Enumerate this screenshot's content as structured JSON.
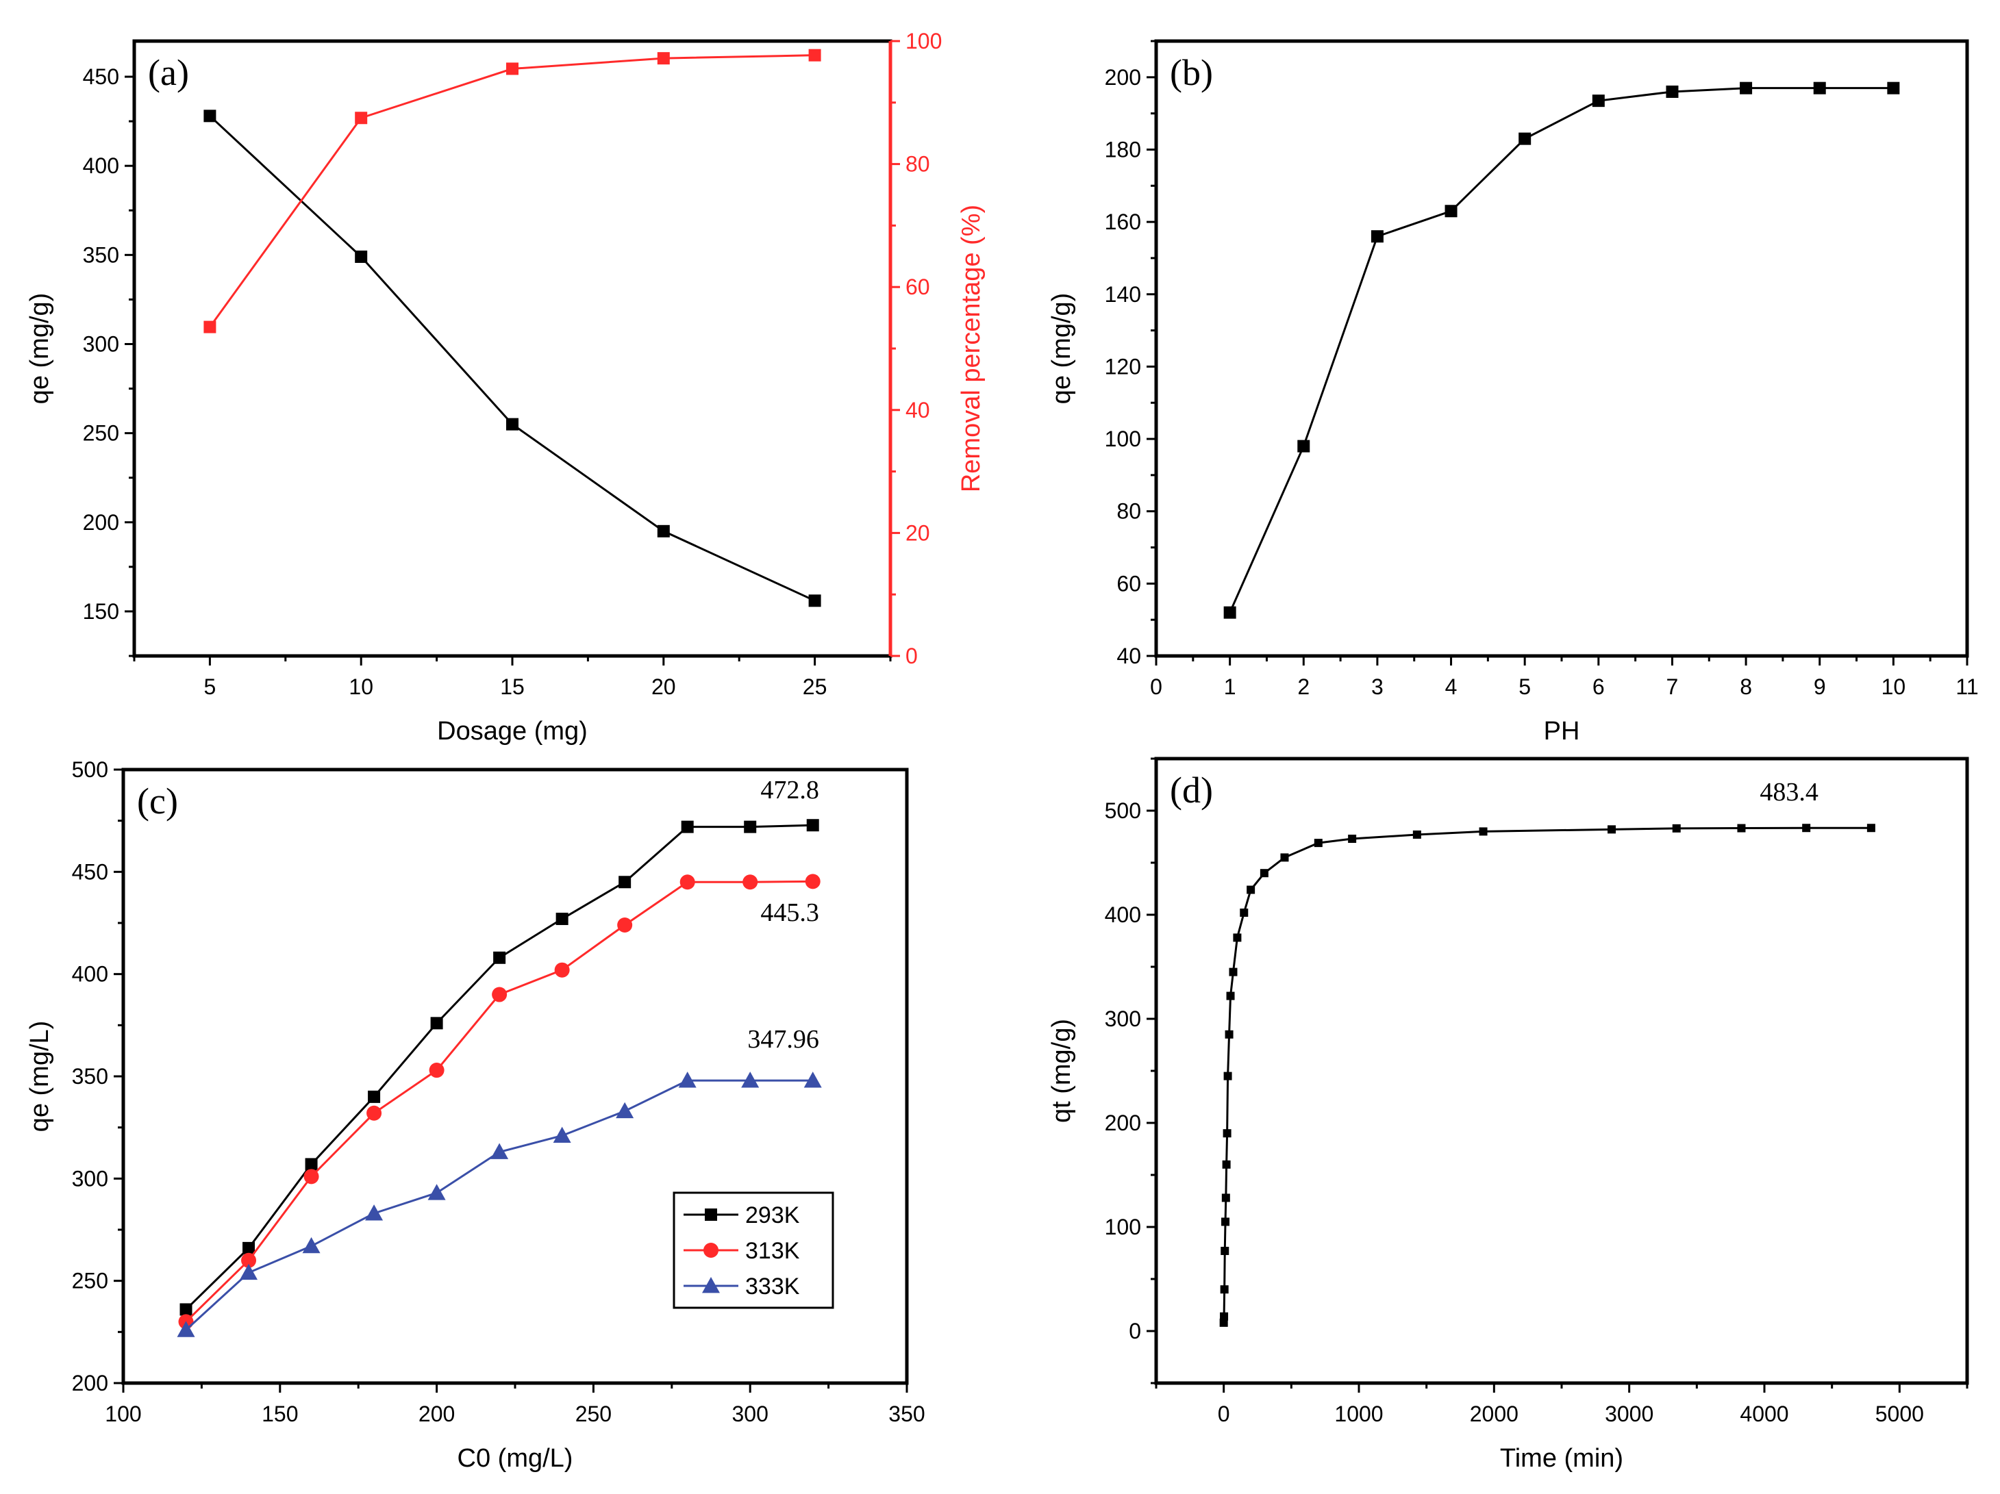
{
  "chart_data": [
    {
      "panel": "(a)",
      "type": "line",
      "xlabel": "Dosage (mg)",
      "ylabel": "qe (mg/g)",
      "y2label": "Removal percentage (%)",
      "xlim": [
        2.5,
        27.5
      ],
      "ylim": [
        125,
        470
      ],
      "y2lim": [
        0,
        100
      ],
      "xticks": [
        5,
        10,
        15,
        20,
        25
      ],
      "yticks": [
        150,
        200,
        250,
        300,
        350,
        400,
        450
      ],
      "y2ticks": [
        0,
        20,
        40,
        60,
        80,
        100
      ],
      "x": [
        5,
        10,
        15,
        20,
        25
      ],
      "series": [
        {
          "axis": "left",
          "color": "#000000",
          "marker": "square",
          "values": [
            428,
            349,
            255,
            195,
            156
          ]
        },
        {
          "axis": "right",
          "color": "#ff2a2a",
          "marker": "square",
          "values": [
            53.5,
            87.5,
            95.5,
            97.2,
            97.7
          ]
        }
      ]
    },
    {
      "panel": "(b)",
      "type": "line",
      "xlabel": "PH",
      "ylabel": "qe (mg/g)",
      "xlim": [
        0,
        11
      ],
      "ylim": [
        40,
        210
      ],
      "xticks": [
        0,
        1,
        2,
        3,
        4,
        5,
        6,
        7,
        8,
        9,
        10,
        11
      ],
      "yticks": [
        40,
        60,
        80,
        100,
        120,
        140,
        160,
        180,
        200
      ],
      "x": [
        1,
        2,
        3,
        4,
        5,
        6,
        7,
        8,
        9,
        10
      ],
      "series": [
        {
          "axis": "left",
          "color": "#000000",
          "marker": "square",
          "values": [
            52,
            98,
            156,
            163,
            183,
            193.5,
            196,
            197,
            197,
            197
          ]
        }
      ]
    },
    {
      "panel": "(c)",
      "type": "line",
      "xlabel": "C0 (mg/L)",
      "ylabel": "qe (mg/L)",
      "xlim": [
        100,
        350
      ],
      "ylim": [
        200,
        500
      ],
      "xticks": [
        100,
        150,
        200,
        250,
        300,
        350
      ],
      "yticks": [
        200,
        250,
        300,
        350,
        400,
        450,
        500
      ],
      "legend_position": "bottom-right",
      "x": [
        120,
        140,
        160,
        180,
        200,
        220,
        240,
        260,
        280,
        300,
        320
      ],
      "series": [
        {
          "name": "293K",
          "color": "#000000",
          "marker": "square",
          "values": [
            236,
            266,
            307,
            340,
            376,
            408,
            427,
            445,
            472,
            472,
            472.8
          ]
        },
        {
          "name": "313K",
          "color": "#ff2a2a",
          "marker": "circle",
          "values": [
            230,
            260,
            301,
            332,
            353,
            390,
            402,
            424,
            445,
            445,
            445.3
          ]
        },
        {
          "name": "333K",
          "color": "#3a4fa8",
          "marker": "triangle",
          "values": [
            226,
            254,
            267,
            283,
            293,
            313,
            321,
            333,
            347.96,
            347.96,
            347.96
          ]
        }
      ],
      "annotations": [
        {
          "text": "472.8",
          "x": 322,
          "y": 486
        },
        {
          "text": "445.3",
          "x": 322,
          "y": 426
        },
        {
          "text": "347.96",
          "x": 322,
          "y": 364
        }
      ]
    },
    {
      "panel": "(d)",
      "type": "line",
      "xlabel": "Time (min)",
      "ylabel": "qt (mg/g)",
      "xlim": [
        -500,
        5500
      ],
      "ylim": [
        -50,
        550
      ],
      "xticks": [
        0,
        1000,
        2000,
        3000,
        4000,
        5000
      ],
      "yticks": [
        0,
        100,
        200,
        300,
        400,
        500
      ],
      "x": [
        0,
        2,
        5,
        8,
        12,
        16,
        20,
        25,
        30,
        40,
        50,
        70,
        100,
        150,
        200,
        300,
        450,
        700,
        950,
        1430,
        1920,
        2870,
        3350,
        3830,
        4310,
        4790
      ],
      "series": [
        {
          "color": "#000000",
          "marker": "square",
          "values": [
            8,
            14,
            40,
            77,
            105,
            128,
            160,
            190,
            245,
            285,
            322,
            345,
            378,
            402,
            424,
            440,
            455,
            469,
            473,
            477,
            480,
            482,
            483,
            483.2,
            483.4,
            483.4
          ]
        }
      ],
      "annotations": [
        {
          "text": "483.4",
          "x": 4400,
          "y": 510
        }
      ]
    }
  ]
}
